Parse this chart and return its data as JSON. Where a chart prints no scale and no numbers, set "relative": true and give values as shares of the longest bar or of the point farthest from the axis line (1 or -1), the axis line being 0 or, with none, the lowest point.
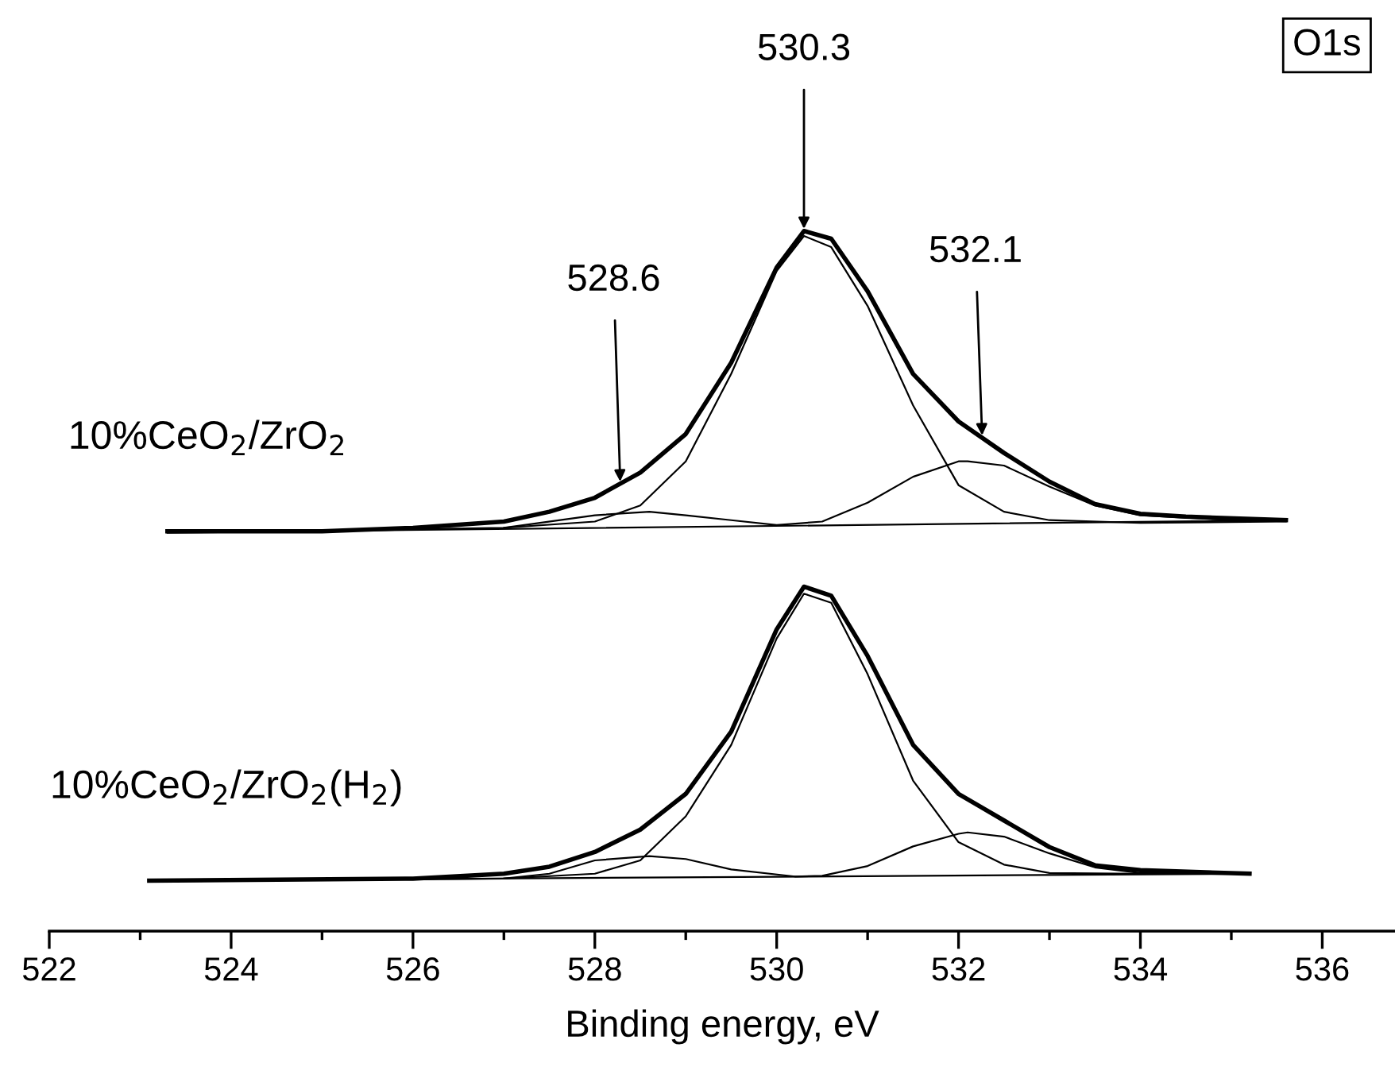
{
  "chart_data": {
    "type": "line",
    "relative": true,
    "xlabel": "Binding energy, eV",
    "xlim": [
      522,
      536.8
    ],
    "xticks": [
      522,
      {
        "value": 523,
        "label": null
      },
      524,
      {
        "value": 525,
        "label": null
      },
      526,
      {
        "value": 527,
        "label": null
      },
      528,
      {
        "value": 529,
        "label": null
      },
      530,
      {
        "value": 531,
        "label": null
      },
      532,
      {
        "value": 533,
        "label": null
      },
      534,
      {
        "value": 535,
        "label": null
      },
      536
    ],
    "tick_labels": "x",
    "grid": false,
    "marker": "none",
    "line_style": "solid",
    "annotations": [
      "O1s",
      {
        "text": "530.3",
        "x": 530.3,
        "y": 1.0
      },
      {
        "text": "528.6",
        "x": 528.28,
        "y": 0.639
      },
      {
        "text": "532.1",
        "x": 532.26,
        "y": 0.705
      }
    ],
    "series": [
      {
        "name": "10%CeO$_{2}$/ZrO$_{2}$",
        "color": "#000000",
        "x": [
          523.3,
          525,
          526,
          527,
          527.5,
          528,
          528.5,
          529,
          529.5,
          530,
          530.3,
          530.6,
          531,
          531.5,
          532,
          532.5,
          533,
          533.5,
          534,
          534.5,
          535.6
        ],
        "values": [
          0.571,
          0.571,
          0.576,
          0.585,
          0.599,
          0.619,
          0.655,
          0.71,
          0.812,
          0.948,
          1.0,
          0.989,
          0.914,
          0.796,
          0.728,
          0.683,
          0.642,
          0.61,
          0.596,
          0.592,
          0.587
        ]
      },
      {
        "color": "#000000",
        "x": [
          523.3,
          535.6
        ],
        "values": [
          0.569,
          0.587
        ]
      },
      {
        "color": "#000000",
        "x": [
          527,
          528,
          528.5,
          529,
          529.5,
          530,
          530.3,
          530.6,
          531,
          531.5,
          532,
          532.5,
          533,
          534,
          535.6
        ],
        "values": [
          0.576,
          0.585,
          0.608,
          0.671,
          0.796,
          0.943,
          0.993,
          0.977,
          0.893,
          0.751,
          0.637,
          0.599,
          0.587,
          0.583,
          0.585
        ]
      },
      {
        "color": "#000000",
        "x": [
          526,
          527,
          528,
          528.6,
          529,
          529.5,
          530,
          530.5,
          531,
          531.5,
          532,
          532.1,
          532.5,
          533,
          533.5,
          534,
          535,
          535.6
        ],
        "values": [
          0.574,
          0.576,
          0.594,
          0.599,
          0.594,
          0.587,
          0.58,
          0.585,
          0.612,
          0.649,
          0.671,
          0.671,
          0.665,
          0.635,
          0.608,
          0.594,
          0.587,
          0.587
        ]
      },
      {
        "name": "10%CeO$_{2}$/ZrO$_{2}$(H$_{2}$)",
        "color": "#000000",
        "x": [
          523.1,
          526,
          527,
          527.5,
          528,
          528.5,
          529,
          529.5,
          530,
          530.3,
          530.6,
          531,
          531.5,
          532,
          532.5,
          533,
          533.5,
          534,
          535.2
        ],
        "values": [
          0.072,
          0.075,
          0.082,
          0.092,
          0.113,
          0.145,
          0.196,
          0.285,
          0.431,
          0.492,
          0.479,
          0.393,
          0.266,
          0.196,
          0.158,
          0.12,
          0.094,
          0.087,
          0.082
        ]
      },
      {
        "color": "#000000",
        "x": [
          523.1,
          535.2
        ],
        "values": [
          0.072,
          0.082
        ]
      },
      {
        "color": "#000000",
        "x": [
          527,
          528,
          528.5,
          529,
          529.5,
          530,
          530.3,
          530.6,
          531,
          531.5,
          532,
          532.5,
          533,
          534,
          535.2
        ],
        "values": [
          0.075,
          0.082,
          0.101,
          0.164,
          0.266,
          0.418,
          0.482,
          0.469,
          0.367,
          0.215,
          0.127,
          0.095,
          0.083,
          0.082,
          0.082
        ]
      },
      {
        "color": "#000000",
        "x": [
          526,
          527,
          527.5,
          528,
          528.6,
          529,
          529.5,
          530.2,
          530.5,
          531,
          531.5,
          532,
          532.1,
          532.5,
          533,
          533.5,
          534,
          535,
          535.2
        ],
        "values": [
          0.074,
          0.075,
          0.082,
          0.101,
          0.107,
          0.103,
          0.088,
          0.078,
          0.079,
          0.093,
          0.121,
          0.139,
          0.141,
          0.135,
          0.111,
          0.091,
          0.083,
          0.082,
          0.082
        ]
      }
    ]
  }
}
